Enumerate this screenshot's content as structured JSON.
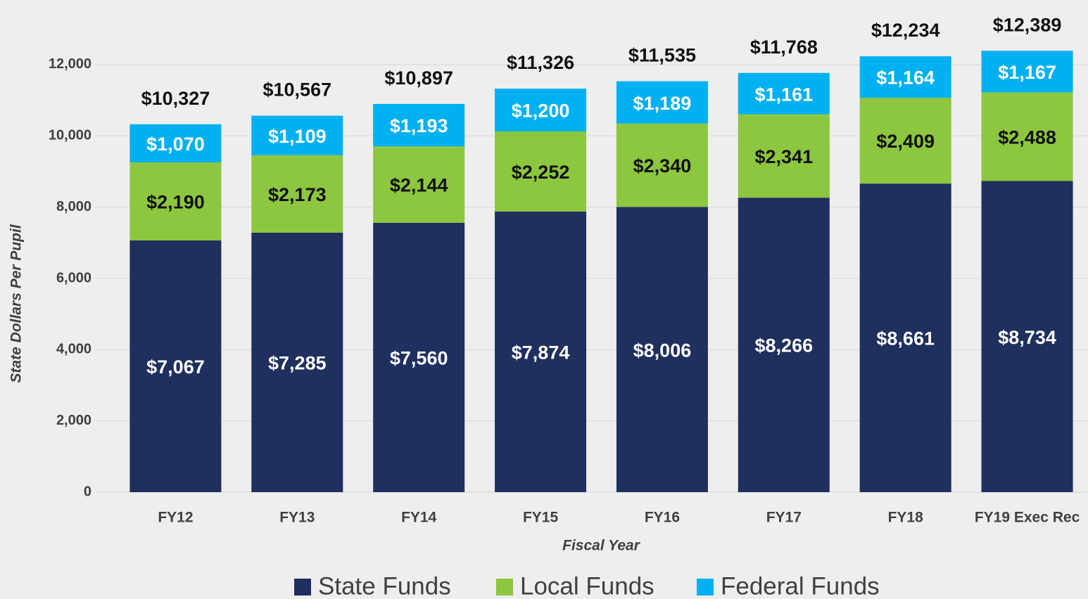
{
  "chart_data": {
    "type": "stacked_bar",
    "x_label": "Fiscal Year",
    "y_label": "State Dollars Per Pupil",
    "categories": [
      "FY12",
      "FY13",
      "FY14",
      "FY15",
      "FY16",
      "FY17",
      "FY18",
      "FY19 Exec Rec"
    ],
    "series": [
      {
        "name": "State Funds",
        "color": "#1f2f5e",
        "label_color": "#ffffff",
        "values": [
          7067,
          7285,
          7560,
          7874,
          8006,
          8266,
          8661,
          8734
        ],
        "value_labels": [
          "$7,067",
          "$7,285",
          "$7,560",
          "$7,874",
          "$8,006",
          "$8,266",
          "$8,661",
          "$8,734"
        ]
      },
      {
        "name": "Local Funds",
        "color": "#8dc63f",
        "label_color": "#111111",
        "values": [
          2190,
          2173,
          2144,
          2252,
          2340,
          2341,
          2409,
          2488
        ],
        "value_labels": [
          "$2,190",
          "$2,173",
          "$2,144",
          "$2,252",
          "$2,340",
          "$2,341",
          "$2,409",
          "$2,488"
        ]
      },
      {
        "name": "Federal Funds",
        "color": "#00b0f0",
        "label_color": "#ffffff",
        "values": [
          1070,
          1109,
          1193,
          1200,
          1189,
          1161,
          1164,
          1167
        ],
        "value_labels": [
          "$1,070",
          "$1,109",
          "$1,193",
          "$1,200",
          "$1,189",
          "$1,161",
          "$1,164",
          "$1,167"
        ]
      }
    ],
    "total_labels": [
      "$10,327",
      "$10,567",
      "$10,897",
      "$11,326",
      "$11,535",
      "$11,768",
      "$12,234",
      "$12,389"
    ],
    "ylim": [
      0,
      13000
    ],
    "yticks": [
      0,
      {
        "value": 2000,
        "label": "2,000"
      },
      {
        "value": 4000,
        "label": "4,000"
      },
      {
        "value": 6000,
        "label": "6,000"
      },
      {
        "value": 8000,
        "label": "8,000"
      },
      {
        "value": 10000,
        "label": "10,000"
      },
      {
        "value": 12000,
        "label": "12,000"
      }
    ],
    "grid": true,
    "legend": "bottom"
  }
}
